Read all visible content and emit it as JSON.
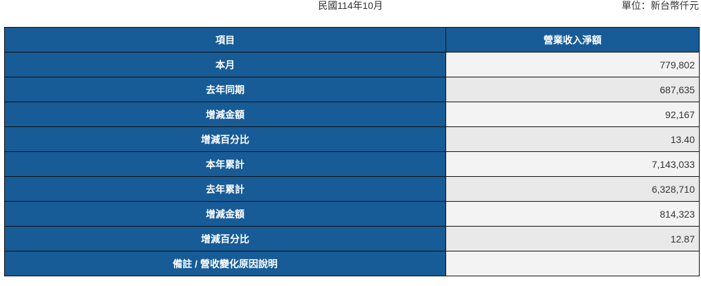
{
  "header": {
    "period": "民國114年10月",
    "unit": "單位：新台幣仟元"
  },
  "table": {
    "columns": [
      "項目",
      "營業收入淨額"
    ],
    "rows": [
      {
        "label": "本月",
        "value": "779,802"
      },
      {
        "label": "去年同期",
        "value": "687,635"
      },
      {
        "label": "增減金額",
        "value": "92,167"
      },
      {
        "label": "增減百分比",
        "value": "13.40"
      },
      {
        "label": "本年累計",
        "value": "7,143,033"
      },
      {
        "label": "去年累計",
        "value": "6,328,710"
      },
      {
        "label": "增減金額",
        "value": "814,323"
      },
      {
        "label": "增減百分比",
        "value": "12.87"
      },
      {
        "label": "備註 / 營收變化原因說明",
        "value": ""
      }
    ]
  },
  "colors": {
    "header_blue": "#175b97"
  }
}
